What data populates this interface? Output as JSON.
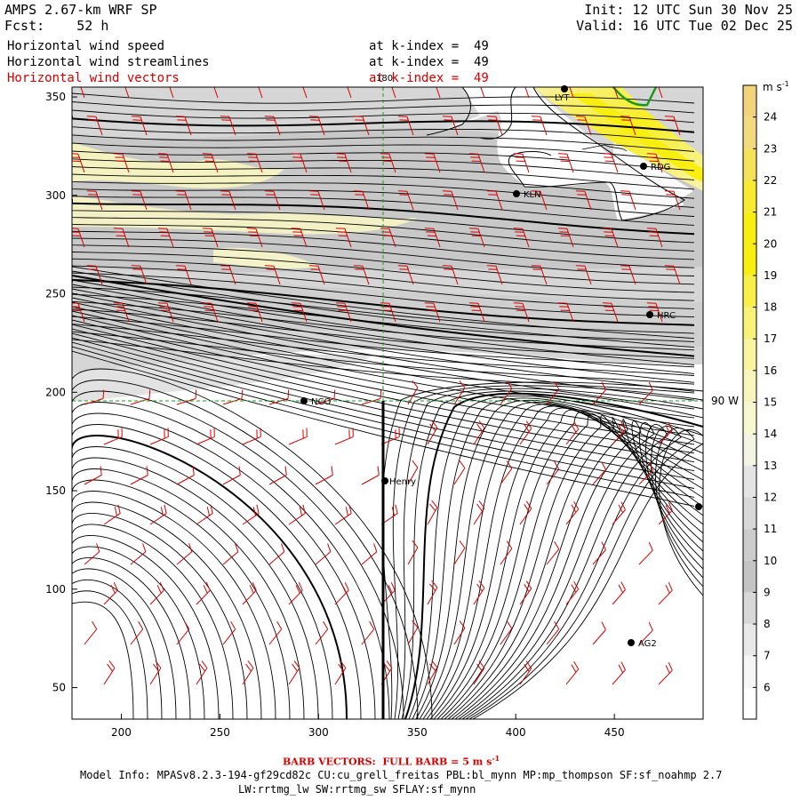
{
  "header": {
    "title": "AMPS 2.67-km WRF SP",
    "forecast": "Fcst:    52 h",
    "init": "Init: 12 UTC Sun 30 Nov 25",
    "valid": "Valid: 16 UTC Tue 02 Dec 25"
  },
  "fields": [
    {
      "label": "Horizontal wind speed",
      "level": "at k-index =  49",
      "color": "#000000"
    },
    {
      "label": "Horizontal wind streamlines",
      "level": "at k-index =  49",
      "color": "#000000"
    },
    {
      "label": "Horizontal wind vectors",
      "level": "at k-index =  49",
      "color": "#d40000"
    }
  ],
  "map": {
    "x_ticks": [
      "200",
      "250",
      "300",
      "350",
      "400",
      "450"
    ],
    "y_ticks": [
      "350",
      "300",
      "250",
      "200",
      "150",
      "100",
      "50"
    ],
    "meridian_label": "180",
    "latitude_label": "90 W",
    "stations": [
      {
        "name": "LYT",
        "id": "lyt"
      },
      {
        "name": "RDG",
        "id": "rdg"
      },
      {
        "name": "KLN",
        "id": "kln"
      },
      {
        "name": "HRC",
        "id": "hrc"
      },
      {
        "name": "NCO",
        "id": "nco"
      },
      {
        "name": "Henry",
        "id": "henry"
      },
      {
        "name": "AG2",
        "id": "ag2"
      }
    ]
  },
  "colorbar": {
    "units": "m s",
    "units_exp": "-1",
    "levels": [
      "24",
      "23",
      "22",
      "21",
      "20",
      "19",
      "18",
      "17",
      "16",
      "15",
      "14",
      "13",
      "12",
      "11",
      "10",
      "9",
      "8",
      "7",
      "6"
    ],
    "colors": [
      "#f2d27a",
      "#f4da7e",
      "#f6e258",
      "#f8ea30",
      "#f8ee10",
      "#f8ee10",
      "#f8f048",
      "#f8f278",
      "#f8f4a0",
      "#f8f6bc",
      "#f8f8d0",
      "#f4f4e4",
      "#e4e4e4",
      "#d8d8d8",
      "#cccccc",
      "#c4c4c4",
      "#d8d8d8",
      "#e8e8e8",
      "#f6f6f6"
    ]
  },
  "footer": {
    "barb_note": "BARB VECTORS:  FULL BARB = 5 m s",
    "barb_exp": "-1",
    "model_info_1": "Model Info: MPASv8.2.3-194-gf29cd82c CU:cu_grell_freitas PBL:bl_mynn MP:mp_thompson SF:sf_noahmp 2.7",
    "model_info_2": "LW:rrtmg_lw SW:rrtmg_sw SFLAY:sf_mynn"
  }
}
